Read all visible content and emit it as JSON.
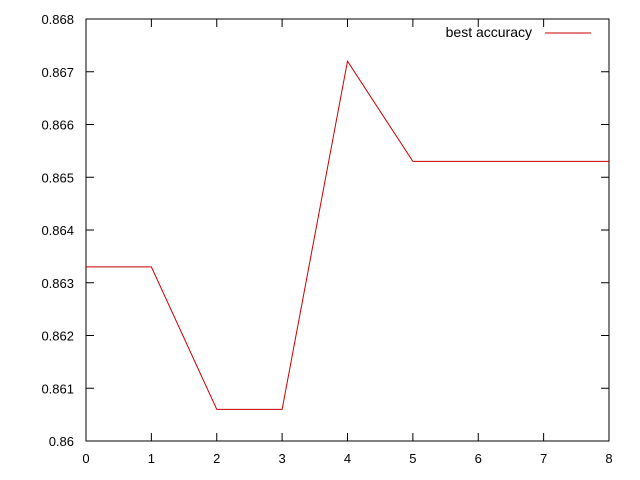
{
  "chart_data": {
    "type": "line",
    "title": "",
    "xlabel": "",
    "ylabel": "",
    "xlim": [
      0,
      8
    ],
    "ylim": [
      0.86,
      0.868
    ],
    "x_ticks": [
      0,
      1,
      2,
      3,
      4,
      5,
      6,
      7,
      8
    ],
    "x_tick_labels": [
      "0",
      "1",
      "2",
      "3",
      "4",
      "5",
      "6",
      "7",
      "8"
    ],
    "y_ticks": [
      0.86,
      0.861,
      0.862,
      0.863,
      0.864,
      0.865,
      0.866,
      0.867,
      0.868
    ],
    "y_tick_labels": [
      "0.86",
      "0.861",
      "0.862",
      "0.863",
      "0.864",
      "0.865",
      "0.866",
      "0.867",
      "0.868"
    ],
    "grid": false,
    "legend_position": "top-right",
    "series": [
      {
        "name": "best accuracy",
        "color": "#cc0000",
        "x": [
          0,
          1,
          2,
          3,
          4,
          5,
          6,
          7,
          8
        ],
        "y": [
          0.8633,
          0.8633,
          0.8606,
          0.8606,
          0.8672,
          0.8653,
          0.8653,
          0.8653,
          0.8653
        ]
      }
    ]
  }
}
